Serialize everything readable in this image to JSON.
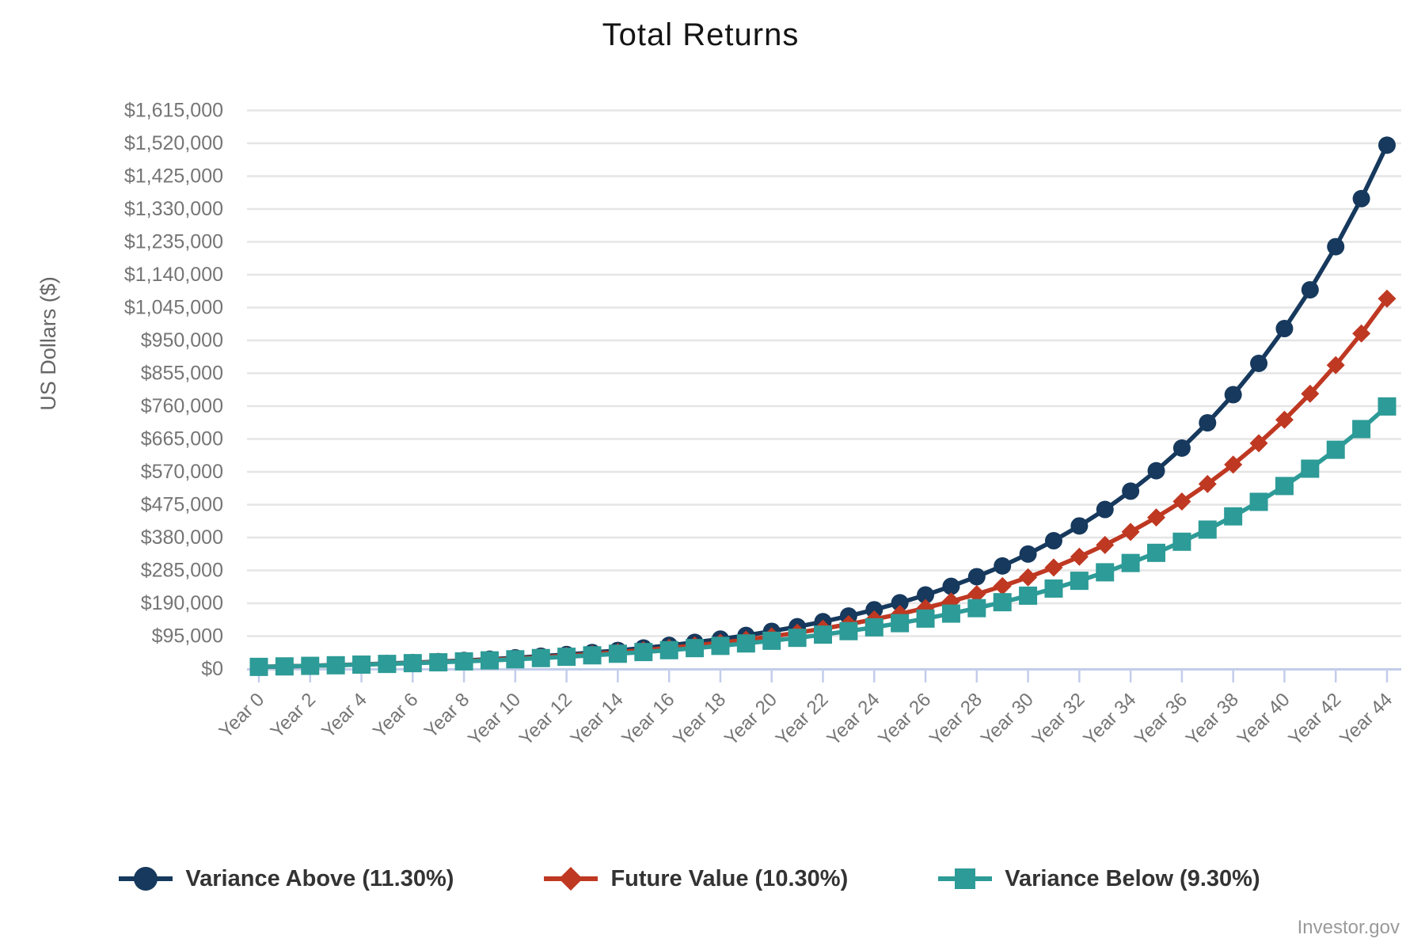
{
  "page": {
    "attribution": "Investor.gov"
  },
  "chart_data": {
    "type": "line",
    "title": "Total Returns",
    "xlabel": "",
    "ylabel": "US Dollars ($)",
    "x_tick_step": 2,
    "x_tick_labels": [
      "Year 0",
      "Year 2",
      "Year 4",
      "Year 6",
      "Year 8",
      "Year 10",
      "Year 12",
      "Year 14",
      "Year 16",
      "Year 18",
      "Year 20",
      "Year 22",
      "Year 24",
      "Year 26",
      "Year 28",
      "Year 30",
      "Year 32",
      "Year 34",
      "Year 36",
      "Year 38",
      "Year 40",
      "Year 42",
      "Year 44"
    ],
    "x_range": [
      0,
      44
    ],
    "y_ticks": [
      0,
      95000,
      190000,
      285000,
      380000,
      475000,
      570000,
      665000,
      760000,
      855000,
      950000,
      1045000,
      1140000,
      1235000,
      1330000,
      1425000,
      1520000,
      1615000
    ],
    "ylim": [
      0,
      1615000
    ],
    "grid": "horizontal",
    "legend_position": "bottom",
    "colors": {
      "navy": "#16395d",
      "red": "#bf3822",
      "teal": "#2d9b97",
      "grid": "#e5e5e5",
      "axis": "#c3cdeb",
      "tick_text": "#757575",
      "legend_text": "#333333",
      "attribution": "#9a9a9a"
    },
    "series": [
      {
        "name": "Variance Above (11.30%)",
        "rate_percent": 11.3,
        "marker": "circle",
        "color_key": "navy",
        "values": [
          6000,
          7548,
          9271,
          11189,
          13323,
          15698,
          18342,
          21285,
          24560,
          28205,
          32263,
          36778,
          41804,
          47398,
          53624,
          60553,
          68266,
          76850,
          86404,
          97038,
          108873,
          122046,
          136707,
          153025,
          171187,
          191400,
          213899,
          238939,
          266809,
          297829,
          332354,
          370779,
          413547,
          461148,
          514128,
          573095,
          638724,
          711770,
          793070,
          883565,
          984269,
          1096362,
          1221120,
          1359977,
          1514524
        ]
      },
      {
        "name": "Future Value (10.30%)",
        "rate_percent": 10.3,
        "marker": "diamond",
        "color_key": "red",
        "values": [
          6000,
          7488,
          9129,
          10940,
          12936,
          15139,
          17568,
          20248,
          23203,
          26463,
          30059,
          34025,
          38399,
          43225,
          48547,
          54417,
          60892,
          68034,
          75911,
          84600,
          94184,
          104755,
          116414,
          129275,
          143460,
          159107,
          176365,
          195401,
          216397,
          239556,
          265100,
          293275,
          324353,
          358631,
          396440,
          438143,
          484142,
          534878,
          590841,
          652567,
          720652,
          795749,
          878581,
          969945,
          1070719
        ]
      },
      {
        "name": "Variance Below (9.30%)",
        "rate_percent": 9.3,
        "marker": "square",
        "color_key": "teal",
        "values": [
          6000,
          7428,
          8989,
          10695,
          12559,
          14597,
          16825,
          19260,
          21921,
          24829,
          28009,
          31483,
          35281,
          39433,
          43970,
          48929,
          54349,
          60274,
          66749,
          73827,
          81563,
          90018,
          99260,
          109361,
          120402,
          132469,
          145659,
          160075,
          175832,
          193054,
          211894,
          232470,
          254960,
          279541,
          306408,
          335774,
          367871,
          402953,
          441298,
          483208,
          529017,
          579085,
          633810,
          693626,
          759001
        ]
      }
    ]
  }
}
